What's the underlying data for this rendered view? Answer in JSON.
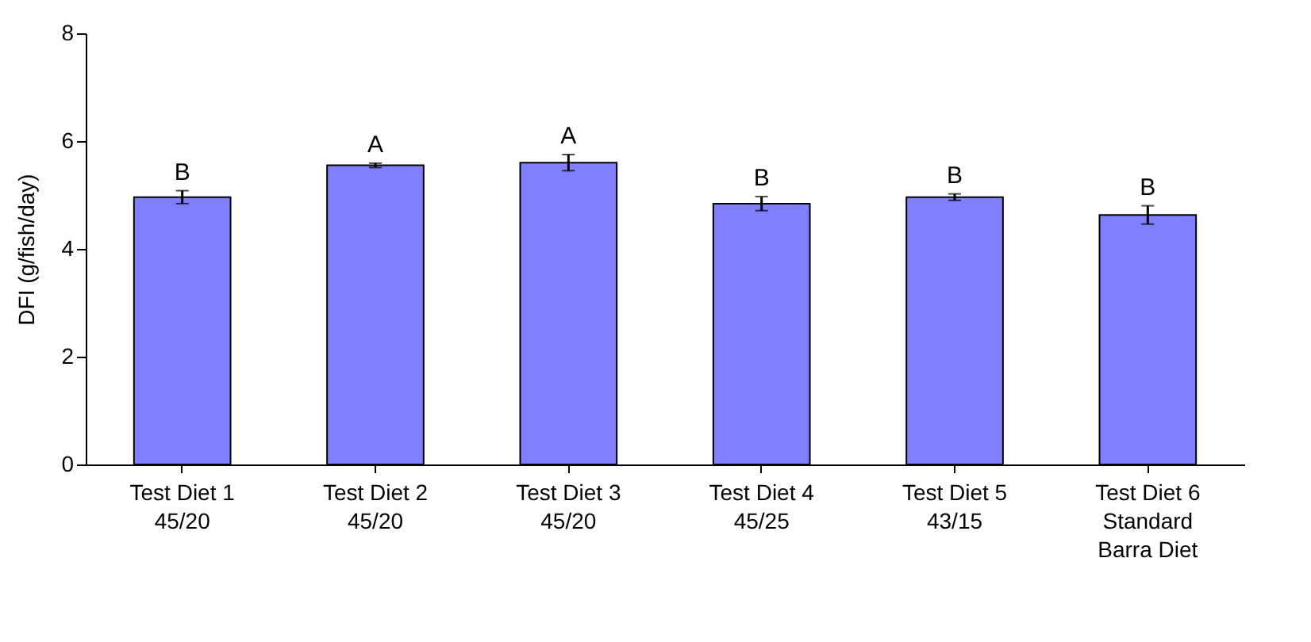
{
  "chart_data": {
    "type": "bar",
    "categories": [
      "Test Diet 1 45/20",
      "Test Diet 2 45/20",
      "Test Diet 3 45/20",
      "Test Diet 4 45/25",
      "Test Diet 5 43/15",
      "Test Diet 6 Standard Barra Diet"
    ],
    "values": [
      4.96,
      5.55,
      5.6,
      4.84,
      4.96,
      4.63
    ],
    "errors": [
      0.12,
      0.04,
      0.15,
      0.13,
      0.06,
      0.17
    ],
    "color": "#8080ff",
    "ylabel": "DFI (g/fish/day)",
    "ylim": [
      0,
      8
    ],
    "yticks": [
      0,
      2,
      4,
      6,
      8
    ],
    "annotations": [
      {
        "text": "B",
        "x": "Test Diet 1 45/20",
        "y": 5.08
      },
      {
        "text": "A",
        "x": "Test Diet 2 45/20",
        "y": 5.59
      },
      {
        "text": "A",
        "x": "Test Diet 3 45/20",
        "y": 5.75
      },
      {
        "text": "B",
        "x": "Test Diet 4 45/25",
        "y": 4.97
      },
      {
        "text": "B",
        "x": "Test Diet 5 43/15",
        "y": 5.02
      },
      {
        "text": "B",
        "x": "Test Diet 6 Standard Barra Diet",
        "y": 4.8
      }
    ]
  }
}
